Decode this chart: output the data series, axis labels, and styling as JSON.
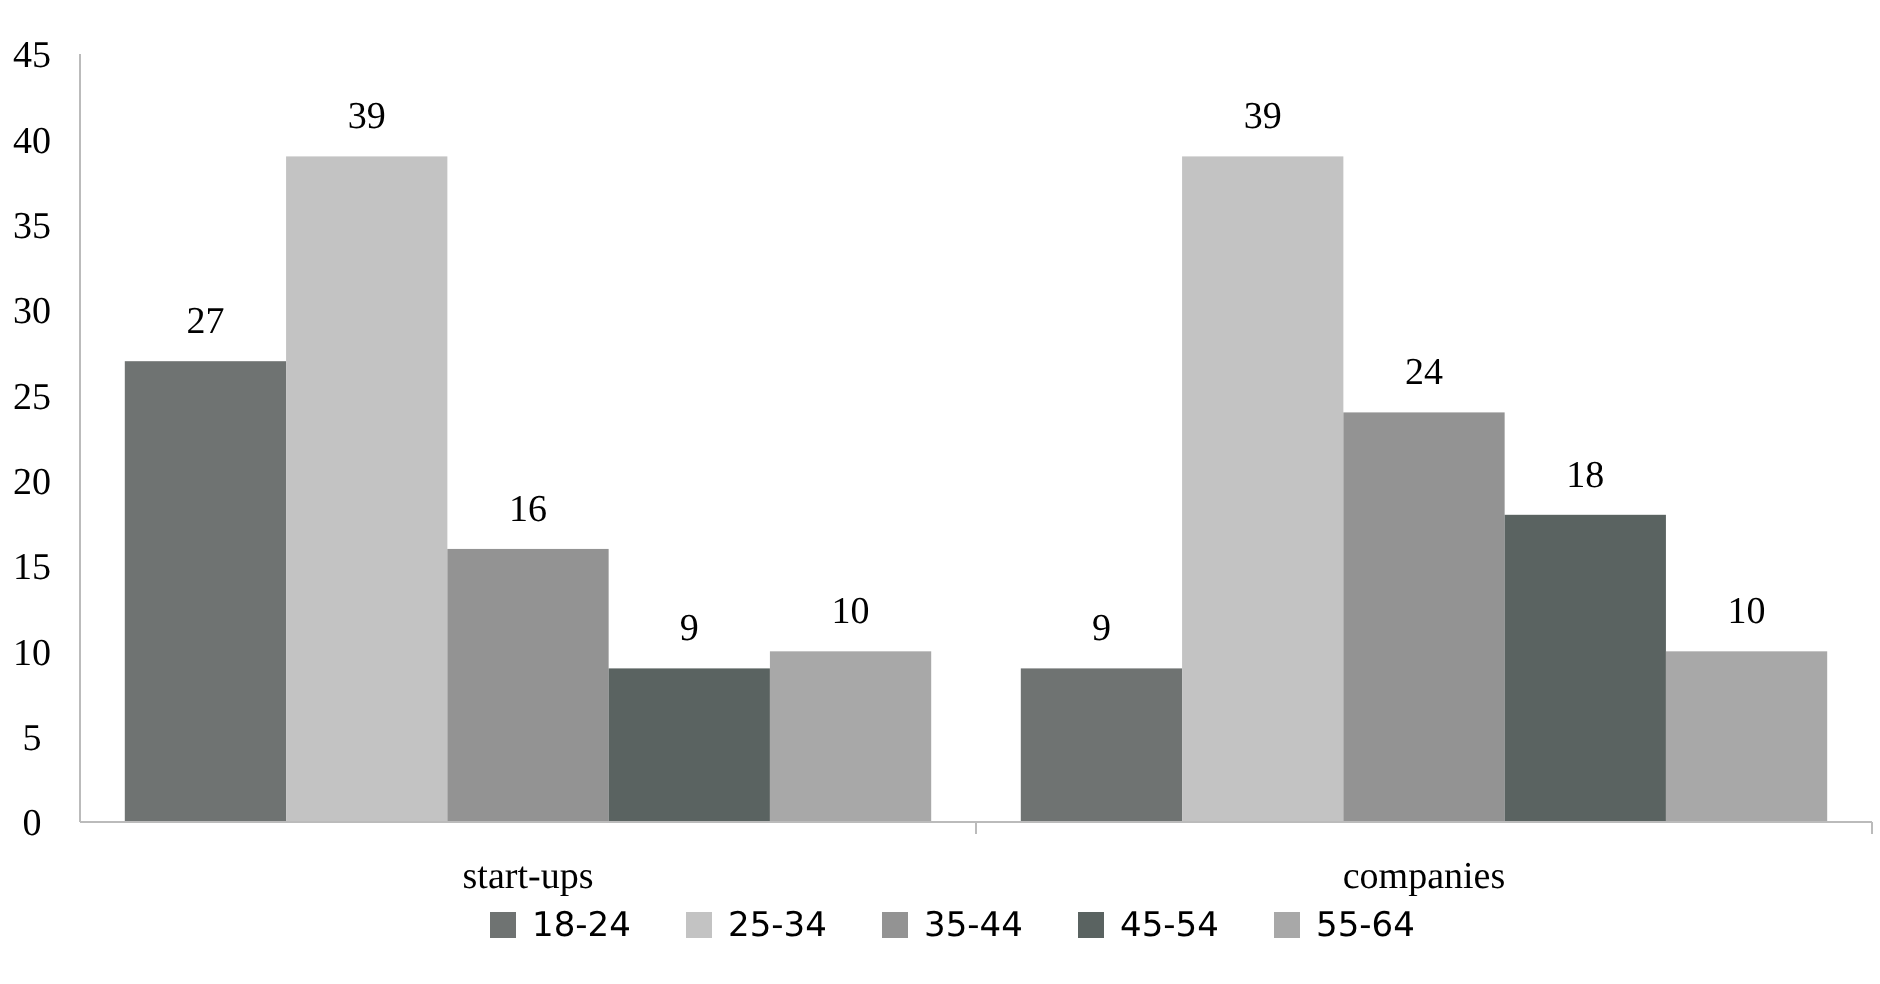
{
  "chart_data": {
    "type": "bar",
    "categories": [
      "start-ups",
      "companies"
    ],
    "series": [
      {
        "name": "18-24",
        "color": "#6f7372",
        "values": [
          27,
          9
        ]
      },
      {
        "name": "25-34",
        "color": "#c3c3c3",
        "values": [
          39,
          39
        ]
      },
      {
        "name": "35-44",
        "color": "#939393",
        "values": [
          16,
          24
        ]
      },
      {
        "name": "45-54",
        "color": "#5a6361",
        "values": [
          9,
          18
        ]
      },
      {
        "name": "55-64",
        "color": "#a8a8a8",
        "values": [
          10,
          10
        ]
      }
    ],
    "ylim": [
      0,
      45
    ],
    "yticks": [
      0,
      5,
      10,
      15,
      20,
      25,
      30,
      35,
      40,
      45
    ],
    "grid": false,
    "legend": "bottom",
    "data_labels": true
  }
}
